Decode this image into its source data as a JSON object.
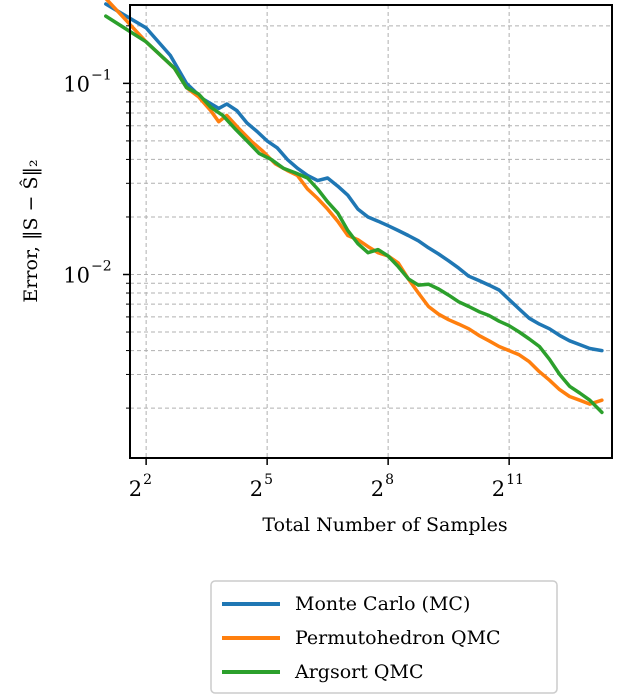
{
  "chart_data": {
    "type": "line",
    "title": "",
    "xlabel": "Total Number of Samples",
    "ylabel": "Error, ‖S − Ŝ‖₂",
    "x_scale": "log2",
    "y_scale": "log10",
    "xlim": [
      1.6,
      13.55
    ],
    "ylim": [
      -2.96,
      -0.59
    ],
    "x_ticks": [
      {
        "pos": 2,
        "base": "2",
        "exp": "2"
      },
      {
        "pos": 5,
        "base": "2",
        "exp": "5"
      },
      {
        "pos": 8,
        "base": "2",
        "exp": "8"
      },
      {
        "pos": 11,
        "base": "2",
        "exp": "11"
      }
    ],
    "y_ticks": [
      {
        "pos": -1,
        "base": "10",
        "exp": "−1"
      },
      {
        "pos": -2,
        "base": "10",
        "exp": "−2"
      }
    ],
    "grid": true,
    "legend_position": "below plot",
    "series": [
      {
        "name": "Monte Carlo (MC)",
        "color": "#1f77b4",
        "points": [
          [
            1,
            0.26
          ],
          [
            2,
            0.195
          ],
          [
            2.6,
            0.14
          ],
          [
            3,
            0.1
          ],
          [
            3.4,
            0.083
          ],
          [
            3.8,
            0.074
          ],
          [
            4,
            0.078
          ],
          [
            4.25,
            0.072
          ],
          [
            4.5,
            0.062
          ],
          [
            4.75,
            0.056
          ],
          [
            5,
            0.05
          ],
          [
            5.25,
            0.046
          ],
          [
            5.5,
            0.04
          ],
          [
            5.75,
            0.036
          ],
          [
            6,
            0.033
          ],
          [
            6.25,
            0.031
          ],
          [
            6.5,
            0.032
          ],
          [
            6.75,
            0.029
          ],
          [
            7,
            0.026
          ],
          [
            7.25,
            0.022
          ],
          [
            7.5,
            0.02
          ],
          [
            7.75,
            0.019
          ],
          [
            8,
            0.018
          ],
          [
            8.25,
            0.017
          ],
          [
            8.5,
            0.016
          ],
          [
            8.75,
            0.015
          ],
          [
            9,
            0.0138
          ],
          [
            9.25,
            0.0128
          ],
          [
            9.5,
            0.0118
          ],
          [
            9.75,
            0.0108
          ],
          [
            10,
            0.0098
          ],
          [
            10.25,
            0.0093
          ],
          [
            10.5,
            0.0088
          ],
          [
            10.75,
            0.0083
          ],
          [
            11,
            0.0074
          ],
          [
            11.25,
            0.0066
          ],
          [
            11.5,
            0.0059
          ],
          [
            11.75,
            0.0055
          ],
          [
            12,
            0.0052
          ],
          [
            12.25,
            0.0048
          ],
          [
            12.5,
            0.0045
          ],
          [
            12.75,
            0.0043
          ],
          [
            13,
            0.0041
          ],
          [
            13.3,
            0.004
          ]
        ]
      },
      {
        "name": "Permutohedron QMC",
        "color": "#ff7f0e",
        "points": [
          [
            1,
            0.278
          ],
          [
            2,
            0.165
          ],
          [
            2.7,
            0.12
          ],
          [
            3,
            0.095
          ],
          [
            3.3,
            0.085
          ],
          [
            3.6,
            0.072
          ],
          [
            3.8,
            0.063
          ],
          [
            4,
            0.068
          ],
          [
            4.3,
            0.058
          ],
          [
            4.6,
            0.05
          ],
          [
            4.9,
            0.044
          ],
          [
            5.2,
            0.038
          ],
          [
            5.5,
            0.035
          ],
          [
            5.75,
            0.033
          ],
          [
            6,
            0.028
          ],
          [
            6.25,
            0.025
          ],
          [
            6.5,
            0.022
          ],
          [
            6.75,
            0.019
          ],
          [
            7,
            0.016
          ],
          [
            7.25,
            0.0152
          ],
          [
            7.5,
            0.014
          ],
          [
            7.75,
            0.013
          ],
          [
            8,
            0.0125
          ],
          [
            8.25,
            0.0115
          ],
          [
            8.5,
            0.0095
          ],
          [
            8.75,
            0.008
          ],
          [
            9,
            0.0068
          ],
          [
            9.25,
            0.0062
          ],
          [
            9.5,
            0.0058
          ],
          [
            9.75,
            0.0055
          ],
          [
            10,
            0.0052
          ],
          [
            10.25,
            0.0048
          ],
          [
            10.5,
            0.0045
          ],
          [
            10.75,
            0.0042
          ],
          [
            11,
            0.004
          ],
          [
            11.25,
            0.0038
          ],
          [
            11.5,
            0.0035
          ],
          [
            11.75,
            0.0031
          ],
          [
            12,
            0.0028
          ],
          [
            12.25,
            0.0025
          ],
          [
            12.5,
            0.0023
          ],
          [
            12.75,
            0.0022
          ],
          [
            13,
            0.0021
          ],
          [
            13.3,
            0.0022
          ]
        ]
      },
      {
        "name": "Argsort QMC",
        "color": "#2ca02c",
        "points": [
          [
            1,
            0.225
          ],
          [
            2,
            0.165
          ],
          [
            2.7,
            0.12
          ],
          [
            3,
            0.095
          ],
          [
            3.3,
            0.088
          ],
          [
            3.6,
            0.075
          ],
          [
            3.9,
            0.068
          ],
          [
            4.2,
            0.058
          ],
          [
            4.5,
            0.05
          ],
          [
            4.8,
            0.043
          ],
          [
            5.1,
            0.04
          ],
          [
            5.4,
            0.036
          ],
          [
            5.7,
            0.034
          ],
          [
            6,
            0.032
          ],
          [
            6.25,
            0.028
          ],
          [
            6.5,
            0.024
          ],
          [
            6.75,
            0.021
          ],
          [
            7,
            0.017
          ],
          [
            7.25,
            0.0145
          ],
          [
            7.5,
            0.013
          ],
          [
            7.75,
            0.0135
          ],
          [
            8,
            0.0125
          ],
          [
            8.25,
            0.011
          ],
          [
            8.5,
            0.0095
          ],
          [
            8.75,
            0.0088
          ],
          [
            9,
            0.0089
          ],
          [
            9.25,
            0.0084
          ],
          [
            9.5,
            0.0078
          ],
          [
            9.75,
            0.0072
          ],
          [
            10,
            0.0068
          ],
          [
            10.25,
            0.0064
          ],
          [
            10.5,
            0.0061
          ],
          [
            10.75,
            0.0057
          ],
          [
            11,
            0.0054
          ],
          [
            11.25,
            0.005
          ],
          [
            11.5,
            0.0046
          ],
          [
            11.75,
            0.0042
          ],
          [
            12,
            0.0036
          ],
          [
            12.25,
            0.003
          ],
          [
            12.5,
            0.0026
          ],
          [
            12.75,
            0.0024
          ],
          [
            13,
            0.0022
          ],
          [
            13.3,
            0.0019
          ]
        ]
      }
    ]
  }
}
